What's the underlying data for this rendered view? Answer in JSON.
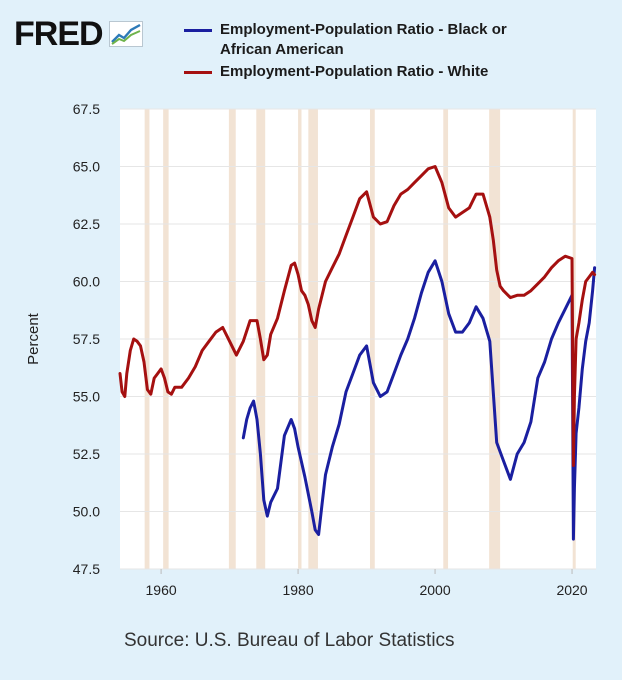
{
  "brand": {
    "logo_text": "FRED",
    "logo_icon": "chart-line-icon"
  },
  "chart_data": {
    "type": "line",
    "title": "",
    "xlabel": "",
    "ylabel": "Percent",
    "xlim": [
      1954,
      2023.5
    ],
    "ylim": [
      47.5,
      67.5
    ],
    "yticks": [
      "47.5",
      "50.0",
      "52.5",
      "55.0",
      "57.5",
      "60.0",
      "62.5",
      "65.0",
      "67.5"
    ],
    "xticks": [
      "1960",
      "1980",
      "2000",
      "2020"
    ],
    "grid": true,
    "legend_position": "top",
    "recession_color": "#f2e3d4",
    "recessions": [
      [
        1957.6,
        1958.3
      ],
      [
        1960.3,
        1961.1
      ],
      [
        1969.9,
        1970.9
      ],
      [
        1973.9,
        1975.2
      ],
      [
        1980.0,
        1980.5
      ],
      [
        1981.5,
        1982.9
      ],
      [
        1990.5,
        1991.2
      ],
      [
        2001.2,
        2001.9
      ],
      [
        2007.9,
        2009.5
      ],
      [
        2020.1,
        2020.3
      ]
    ],
    "series": [
      {
        "name": "Employment-Population Ratio - Black or African American",
        "color": "#1a1fa0",
        "x": [
          1972.0,
          1972.5,
          1973.0,
          1973.5,
          1974.0,
          1974.5,
          1975.0,
          1975.5,
          1976.0,
          1977.0,
          1978.0,
          1979.0,
          1979.5,
          1980.0,
          1981.0,
          1982.0,
          1982.5,
          1983.0,
          1983.5,
          1984.0,
          1985.0,
          1986.0,
          1987.0,
          1988.0,
          1989.0,
          1990.0,
          1991.0,
          1992.0,
          1993.0,
          1994.0,
          1995.0,
          1996.0,
          1997.0,
          1998.0,
          1999.0,
          2000.0,
          2001.0,
          2002.0,
          2003.0,
          2004.0,
          2005.0,
          2006.0,
          2007.0,
          2008.0,
          2009.0,
          2010.0,
          2011.0,
          2012.0,
          2013.0,
          2014.0,
          2015.0,
          2016.0,
          2017.0,
          2018.0,
          2019.0,
          2020.0,
          2020.2,
          2020.35,
          2020.6,
          2021.0,
          2021.5,
          2022.0,
          2022.5,
          2023.0,
          2023.3
        ],
        "values": [
          53.2,
          54.0,
          54.5,
          54.8,
          54.0,
          52.5,
          50.5,
          49.8,
          50.4,
          51.0,
          53.3,
          54.0,
          53.6,
          52.8,
          51.5,
          50.0,
          49.2,
          49.0,
          50.3,
          51.6,
          52.8,
          53.8,
          55.2,
          56.0,
          56.8,
          57.2,
          55.6,
          55.0,
          55.2,
          56.0,
          56.8,
          57.5,
          58.4,
          59.5,
          60.4,
          60.9,
          60.0,
          58.6,
          57.8,
          57.8,
          58.2,
          58.9,
          58.4,
          57.4,
          53.0,
          52.2,
          51.4,
          52.5,
          53.0,
          53.9,
          55.8,
          56.5,
          57.5,
          58.2,
          58.8,
          59.4,
          48.8,
          51.0,
          53.4,
          54.5,
          56.2,
          57.4,
          58.2,
          59.6,
          60.6
        ]
      },
      {
        "name": "Employment-Population Ratio - White",
        "color": "#a51010",
        "x": [
          1954.0,
          1954.3,
          1954.7,
          1955.0,
          1955.5,
          1956.0,
          1956.5,
          1957.0,
          1957.5,
          1958.0,
          1958.5,
          1959.0,
          1959.5,
          1960.0,
          1960.5,
          1961.0,
          1961.5,
          1962.0,
          1963.0,
          1964.0,
          1965.0,
          1966.0,
          1967.0,
          1968.0,
          1969.0,
          1970.0,
          1971.0,
          1972.0,
          1973.0,
          1974.0,
          1974.5,
          1975.0,
          1975.5,
          1976.0,
          1977.0,
          1978.0,
          1979.0,
          1979.5,
          1980.0,
          1980.5,
          1981.0,
          1981.5,
          1982.0,
          1982.5,
          1983.0,
          1984.0,
          1985.0,
          1986.0,
          1987.0,
          1988.0,
          1989.0,
          1990.0,
          1991.0,
          1992.0,
          1993.0,
          1994.0,
          1995.0,
          1996.0,
          1997.0,
          1998.0,
          1999.0,
          2000.0,
          2001.0,
          2002.0,
          2003.0,
          2004.0,
          2005.0,
          2006.0,
          2007.0,
          2008.0,
          2008.5,
          2009.0,
          2009.5,
          2010.0,
          2011.0,
          2012.0,
          2013.0,
          2014.0,
          2015.0,
          2016.0,
          2017.0,
          2018.0,
          2019.0,
          2020.0,
          2020.2,
          2020.35,
          2020.6,
          2021.0,
          2021.5,
          2022.0,
          2022.5,
          2023.0,
          2023.3
        ],
        "values": [
          56.0,
          55.2,
          55.0,
          56.0,
          57.0,
          57.5,
          57.4,
          57.2,
          56.5,
          55.3,
          55.1,
          55.8,
          56.0,
          56.2,
          55.8,
          55.2,
          55.1,
          55.4,
          55.4,
          55.8,
          56.3,
          57.0,
          57.4,
          57.8,
          58.0,
          57.4,
          56.8,
          57.4,
          58.3,
          58.3,
          57.5,
          56.6,
          56.8,
          57.7,
          58.4,
          59.6,
          60.7,
          60.8,
          60.3,
          59.6,
          59.4,
          59.0,
          58.3,
          58.0,
          58.8,
          60.0,
          60.6,
          61.2,
          62.0,
          62.8,
          63.6,
          63.9,
          62.8,
          62.5,
          62.6,
          63.3,
          63.8,
          64.0,
          64.3,
          64.6,
          64.9,
          65.0,
          64.3,
          63.2,
          62.8,
          63.0,
          63.2,
          63.8,
          63.8,
          62.8,
          61.8,
          60.5,
          59.8,
          59.6,
          59.3,
          59.4,
          59.4,
          59.6,
          59.9,
          60.2,
          60.6,
          60.9,
          61.1,
          61.0,
          52.0,
          55.0,
          57.5,
          58.2,
          59.2,
          60.0,
          60.2,
          60.4,
          60.3
        ]
      }
    ]
  },
  "source_text": "Source: U.S. Bureau of Labor Statistics"
}
